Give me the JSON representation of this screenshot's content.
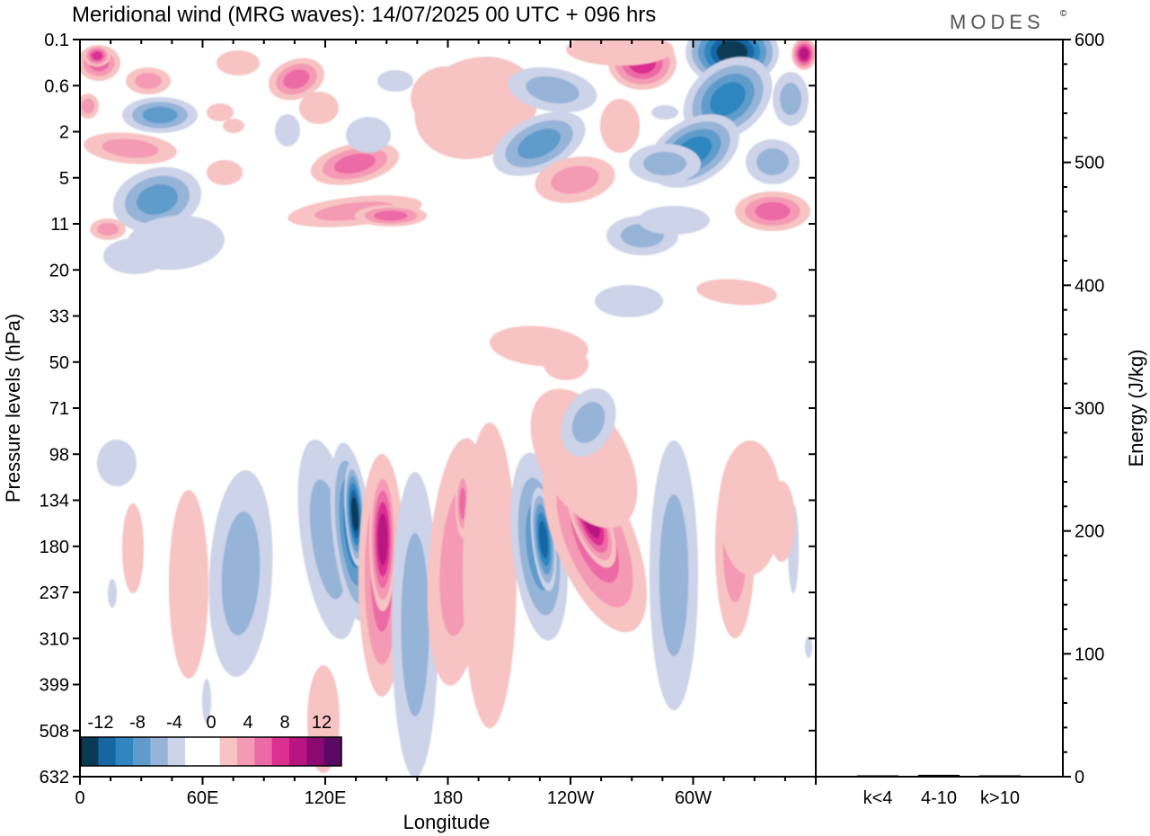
{
  "title": "Meridional wind (MRG waves):  14/07/2025  00 UTC  + 096 hrs",
  "brand": "MODES",
  "brand_mark": "©",
  "chart_data": [
    {
      "type": "heatmap",
      "title": "Meridional wind (MRG waves):  14/07/2025  00 UTC  + 096 hrs",
      "xlabel": "Longitude",
      "ylabel": "Pressure levels (hPa)",
      "x_ticks": [
        {
          "lon": 0,
          "label": "0"
        },
        {
          "lon": 60,
          "label": "60E"
        },
        {
          "lon": 120,
          "label": "120E"
        },
        {
          "lon": 180,
          "label": "180"
        },
        {
          "lon": 240,
          "label": "120W"
        },
        {
          "lon": 300,
          "label": "60W"
        }
      ],
      "xlim": [
        0,
        360
      ],
      "y_levels": [
        "0.1",
        "0.6",
        "2",
        "5",
        "11",
        "20",
        "33",
        "50",
        "71",
        "98",
        "134",
        "180",
        "237",
        "310",
        "399",
        "508",
        "632"
      ],
      "grid": false,
      "colorbar": {
        "labels": [
          "-12",
          "-8",
          "-4",
          "0",
          "4",
          "8",
          "12"
        ],
        "colors": [
          "#0b3a55",
          "#1566a3",
          "#2f86c0",
          "#5f9ccb",
          "#96b4d8",
          "#cdd3e8",
          "#ffffff",
          "#ffffff",
          "#f7c3c3",
          "#f59ab4",
          "#ec6aa5",
          "#dd2f91",
          "#b81580",
          "#8b0a72",
          "#5a0a63"
        ]
      },
      "colors": {
        "positive": "#dd2f91",
        "negative": "#1566a3"
      }
    },
    {
      "type": "bar",
      "ylabel": "Energy (J/kg)",
      "ylim": [
        0,
        600
      ],
      "y_ticks": [
        0,
        100,
        200,
        300,
        400,
        500,
        600
      ],
      "categories": [
        "k<4",
        "4-10",
        "k>10"
      ],
      "values": [
        0.5,
        1.5,
        0.5
      ]
    }
  ]
}
